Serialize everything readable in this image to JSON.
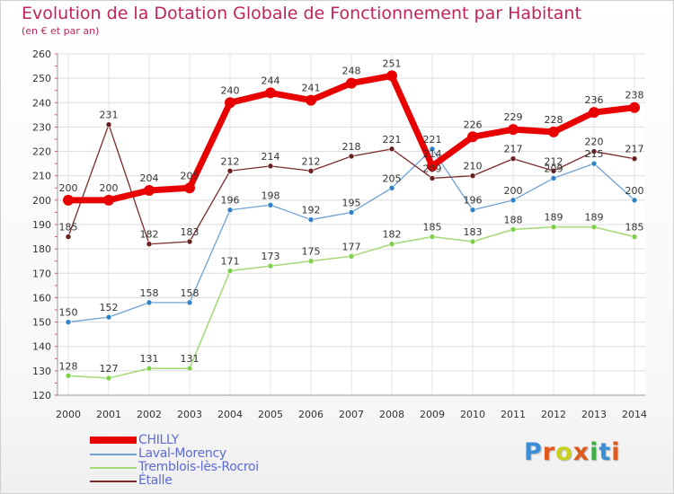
{
  "header": {
    "title": "Evolution de la Dotation Globale de Fonctionnement par Habitant",
    "subtitle": "(en € et par an)"
  },
  "logo": {
    "text": "Proxiti",
    "colors": [
      "#3b8fd6",
      "#e0591d",
      "#c9cf1f",
      "#e0591d",
      "#3fae49",
      "#3b8fd6",
      "#e0591d"
    ]
  },
  "chart_data": {
    "type": "line",
    "title": "Evolution de la Dotation Globale de Fonctionnement par Habitant",
    "subtitle": "(en € et par an)",
    "xlabel": "",
    "ylabel": "",
    "x": [
      "2000",
      "2001",
      "2002",
      "2003",
      "2004",
      "2005",
      "2006",
      "2007",
      "2008",
      "2009",
      "2010",
      "2011",
      "2012",
      "2013",
      "2014"
    ],
    "ylim": [
      120,
      260
    ],
    "yticks": [
      120,
      130,
      140,
      150,
      160,
      170,
      180,
      190,
      200,
      210,
      220,
      230,
      240,
      250,
      260
    ],
    "grid": true,
    "legend_position": "bottom-left",
    "series": [
      {
        "name": "CHILLY",
        "color": "#e80000",
        "width": 7,
        "marker": "#e80000",
        "values": [
          200,
          200,
          204,
          205,
          240,
          244,
          241,
          248,
          251,
          214,
          226,
          229,
          228,
          236,
          238
        ]
      },
      {
        "name": "Laval-Morency",
        "color": "#6fa1d2",
        "width": 1.3,
        "marker": "#2f82c8",
        "values": [
          150,
          152,
          158,
          158,
          196,
          198,
          192,
          195,
          205,
          221,
          196,
          200,
          209,
          215,
          200
        ]
      },
      {
        "name": "Tremblois-lès-Rocroi",
        "color": "#a6db7c",
        "width": 1.6,
        "marker": "#7fcf4a",
        "values": [
          128,
          127,
          131,
          131,
          171,
          173,
          175,
          177,
          182,
          185,
          183,
          188,
          189,
          189,
          185
        ]
      },
      {
        "name": "Étalle",
        "color": "#7a2a2a",
        "width": 1.3,
        "marker": "#6a1f1f",
        "values": [
          185,
          231,
          182,
          183,
          212,
          214,
          212,
          218,
          221,
          209,
          210,
          217,
          212,
          220,
          217
        ]
      }
    ]
  }
}
